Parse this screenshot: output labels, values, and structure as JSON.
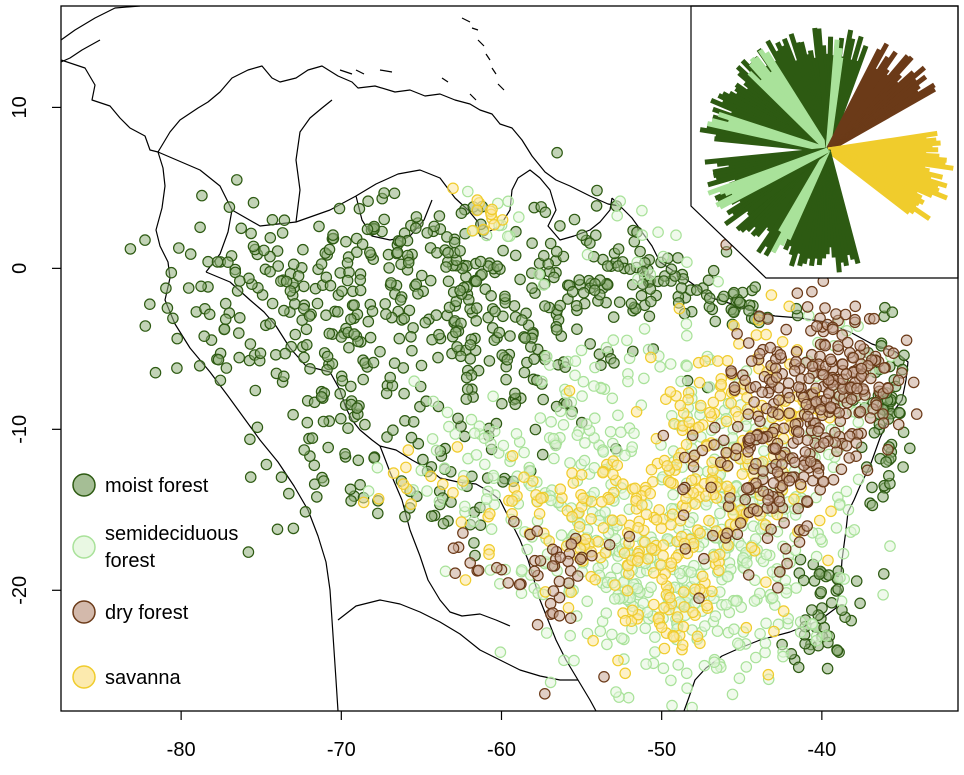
{
  "chart_data": {
    "type": "scatter",
    "title": "",
    "xlabel": "",
    "ylabel": "",
    "xlim": [
      -87.5,
      -31.5
    ],
    "ylim": [
      -27.5,
      16.3
    ],
    "x_ticks": [
      -80,
      -70,
      -60,
      -50,
      -40
    ],
    "y_ticks": [
      10,
      0,
      -10,
      -20
    ],
    "x_tick_labels": [
      "-80",
      "-70",
      "-60",
      "-50",
      "-40"
    ],
    "y_tick_labels": [
      "10",
      "0",
      "-10",
      "-20"
    ],
    "legend_placement": "bottom-left",
    "inset": "phylogenetic fan tree, top-right",
    "series": [
      {
        "name": "moist forest",
        "stroke": "#2d5a12",
        "fill": "#8fae7a",
        "clusters": [
          {
            "lon": -74,
            "lat": -2,
            "sd_lon": 4.0,
            "sd_lat": 3.0,
            "n": 150
          },
          {
            "lon": -62,
            "lat": -2,
            "sd_lon": 5.0,
            "sd_lat": 2.5,
            "n": 150
          },
          {
            "lon": -55,
            "lat": -1,
            "sd_lon": 3.5,
            "sd_lat": 2.5,
            "n": 80
          },
          {
            "lon": -66,
            "lat": 1.5,
            "sd_lon": 3.0,
            "sd_lat": 1.5,
            "n": 50
          },
          {
            "lon": -69,
            "lat": -10,
            "sd_lon": 3.0,
            "sd_lat": 3.0,
            "n": 80
          },
          {
            "lon": -60,
            "lat": -7,
            "sd_lon": 3.0,
            "sd_lat": 2.5,
            "n": 60
          },
          {
            "lon": -50,
            "lat": -1,
            "sd_lon": 2.0,
            "sd_lat": 1.0,
            "n": 35
          },
          {
            "lon": -45,
            "lat": -2.5,
            "sd_lon": 2.0,
            "sd_lat": 1.0,
            "n": 30
          },
          {
            "lon": -36,
            "lat": -9,
            "sd_lon": 0.7,
            "sd_lat": 3.5,
            "n": 60
          },
          {
            "lon": -40,
            "lat": -21,
            "sd_lon": 1.0,
            "sd_lat": 2.0,
            "n": 50
          },
          {
            "lon": -64,
            "lat": -14,
            "sd_lon": 2.0,
            "sd_lat": 2.0,
            "n": 30
          }
        ]
      },
      {
        "name": "semideciduous forest",
        "stroke": "#a9e29a",
        "fill": "#e4f6dc",
        "clusters": [
          {
            "lon": -50,
            "lat": -20,
            "sd_lon": 4.5,
            "sd_lat": 3.0,
            "n": 230
          },
          {
            "lon": -44,
            "lat": -16,
            "sd_lon": 3.0,
            "sd_lat": 4.0,
            "n": 160
          },
          {
            "lon": -53,
            "lat": -10,
            "sd_lon": 4.0,
            "sd_lat": 4.0,
            "n": 120
          },
          {
            "lon": -56,
            "lat": -16,
            "sd_lon": 4.0,
            "sd_lat": 2.0,
            "n": 50
          },
          {
            "lon": -61,
            "lat": -12,
            "sd_lon": 3.0,
            "sd_lat": 2.0,
            "n": 40
          },
          {
            "lon": -39,
            "lat": -8,
            "sd_lon": 1.5,
            "sd_lat": 3.0,
            "n": 40
          },
          {
            "lon": -60,
            "lat": 3.5,
            "sd_lon": 0.7,
            "sd_lat": 1.0,
            "n": 10
          },
          {
            "lon": -51,
            "lat": 1.5,
            "sd_lon": 1.0,
            "sd_lat": 1.5,
            "n": 10
          }
        ]
      },
      {
        "name": "dry forest",
        "stroke": "#6b3a18",
        "fill": "#c8a896",
        "clusters": [
          {
            "lon": -39,
            "lat": -7,
            "sd_lon": 1.8,
            "sd_lat": 2.5,
            "n": 180
          },
          {
            "lon": -43,
            "lat": -11,
            "sd_lon": 1.5,
            "sd_lat": 3.5,
            "n": 150
          },
          {
            "lon": -57,
            "lat": -19,
            "sd_lon": 1.5,
            "sd_lat": 2.5,
            "n": 40
          },
          {
            "lon": -48,
            "lat": -14,
            "sd_lon": 2.0,
            "sd_lat": 3.0,
            "n": 25
          },
          {
            "lon": -62,
            "lat": -18,
            "sd_lon": 1.0,
            "sd_lat": 1.0,
            "n": 8
          }
        ]
      },
      {
        "name": "savanna",
        "stroke": "#f0cc2c",
        "fill": "#fbe59a",
        "clusters": [
          {
            "lon": -48,
            "lat": -14,
            "sd_lon": 3.0,
            "sd_lat": 4.0,
            "n": 180
          },
          {
            "lon": -44,
            "lat": -8,
            "sd_lon": 2.0,
            "sd_lat": 3.0,
            "n": 60
          },
          {
            "lon": -53,
            "lat": -16,
            "sd_lon": 2.5,
            "sd_lat": 3.0,
            "n": 60
          },
          {
            "lon": -58,
            "lat": -15,
            "sd_lon": 2.5,
            "sd_lat": 2.0,
            "n": 30
          },
          {
            "lon": -49,
            "lat": -22,
            "sd_lon": 2.0,
            "sd_lat": 1.5,
            "n": 35
          },
          {
            "lon": -61,
            "lat": 3.5,
            "sd_lon": 0.6,
            "sd_lat": 0.7,
            "n": 12
          },
          {
            "lon": -66,
            "lat": -13,
            "sd_lon": 1.5,
            "sd_lat": 1.0,
            "n": 10
          }
        ]
      }
    ]
  },
  "legend": [
    {
      "label": "moist forest"
    },
    {
      "label": "semideciduous",
      "label_line2": "forest"
    },
    {
      "label": "dry forest"
    },
    {
      "label": "savanna"
    }
  ],
  "colors": {
    "moist": "#2d5a12",
    "semideciduous": "#a9e29a",
    "dry": "#6b3a18",
    "savanna": "#f0cc2c"
  }
}
